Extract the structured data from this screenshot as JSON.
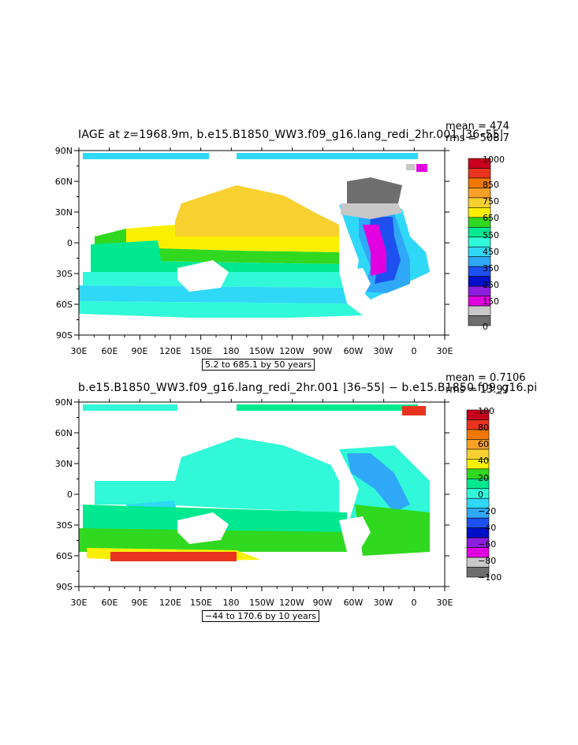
{
  "panels": [
    {
      "title": "IAGE at z=1968.9m, b.e15.B1850_WW3.f09_g16.lang_redi_2hr.001 |36–55|",
      "mean_label": "mean = 474",
      "rms_label": "rms = 508.7",
      "info": "5.2 to 685.1 by 50 years",
      "lat_ticks": [
        "90N",
        "60N",
        "30N",
        "0",
        "30S",
        "60S",
        "90S"
      ],
      "lon_ticks": [
        "30E",
        "60E",
        "90E",
        "120E",
        "150E",
        "180",
        "150W",
        "120W",
        "90W",
        "60W",
        "30W",
        "0",
        "30E"
      ],
      "colorbar": {
        "labels": [
          "1000",
          "850",
          "750",
          "650",
          "550",
          "450",
          "350",
          "250",
          "150",
          "0"
        ],
        "colors": [
          "#c8001e",
          "#e8341e",
          "#f07800",
          "#f8a028",
          "#f8d030",
          "#f8f000",
          "#30d820",
          "#00e890",
          "#30f8d8",
          "#30d8f8",
          "#30a8f8",
          "#1e50f0",
          "#0010c8",
          "#8c1ee0",
          "#e000e0",
          "#c8c8c8",
          "#6e6e6e"
        ]
      }
    },
    {
      "title": "b.e15.B1850_WW3.f09_g16.lang_redi_2hr.001 |36–55| − b.e15.B1850.f09_g16.pi",
      "mean_label": "mean = 0.7106",
      "rms_label": "rms = 13.97",
      "info": "−44 to 170.6 by 10 years",
      "lat_ticks": [
        "90N",
        "60N",
        "30N",
        "0",
        "30S",
        "60S",
        "90S"
      ],
      "lon_ticks": [
        "30E",
        "60E",
        "90E",
        "120E",
        "150E",
        "180",
        "150W",
        "120W",
        "90W",
        "60W",
        "30W",
        "0",
        "30E"
      ],
      "colorbar": {
        "labels": [
          "100",
          "80",
          "60",
          "40",
          "20",
          "0",
          "−20",
          "−40",
          "−60",
          "−80",
          "−100"
        ],
        "colors": [
          "#c8001e",
          "#e8341e",
          "#f07800",
          "#f8a028",
          "#f8d030",
          "#f8f000",
          "#30d820",
          "#00e890",
          "#30f8d8",
          "#30d8f8",
          "#30a8f8",
          "#1e50f0",
          "#0010c8",
          "#8c1ee0",
          "#e000e0",
          "#c8c8c8",
          "#6e6e6e"
        ]
      }
    }
  ]
}
